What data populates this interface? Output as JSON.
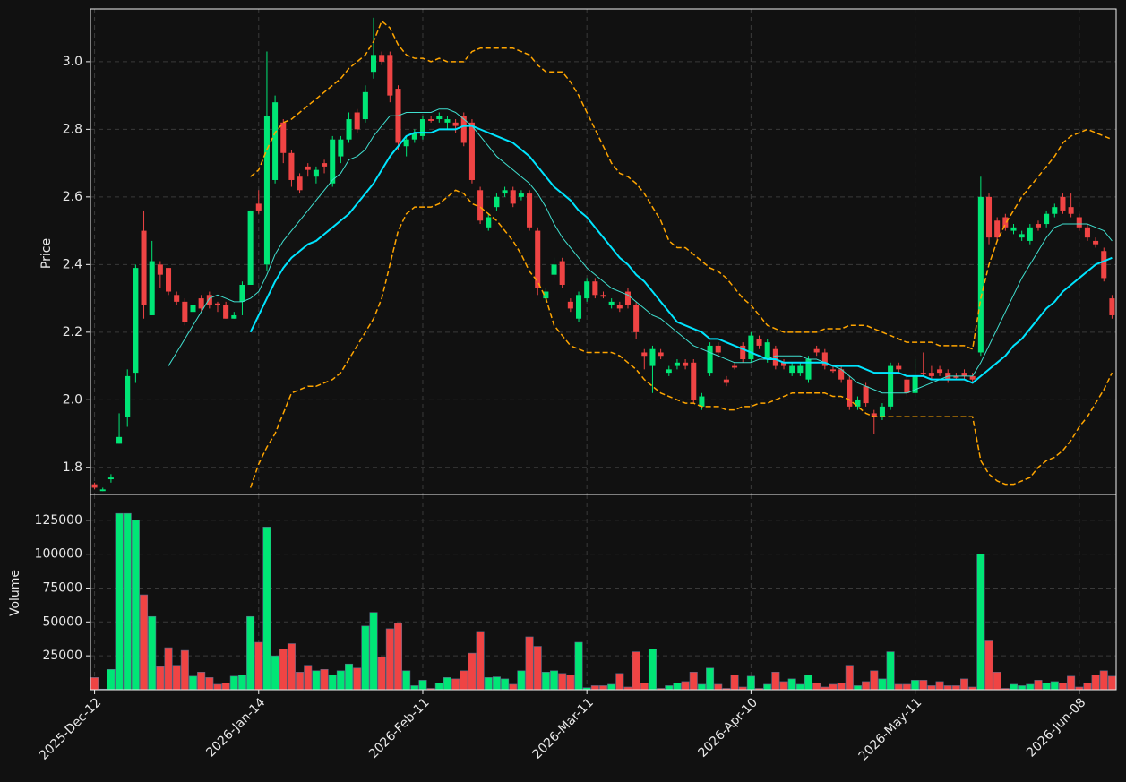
{
  "chart_data": {
    "type": "candlestick",
    "ylabel": "Price",
    "categories": [
      "2025-Dec-12",
      null,
      null,
      null,
      null,
      null,
      null,
      null,
      null,
      null,
      null,
      null,
      null,
      null,
      null,
      null,
      null,
      null,
      null,
      null,
      "2026-Jan-14",
      null,
      null,
      null,
      null,
      null,
      null,
      null,
      null,
      null,
      null,
      null,
      null,
      null,
      null,
      null,
      null,
      null,
      null,
      null,
      "2026-Feb-11",
      null,
      null,
      null,
      null,
      null,
      null,
      null,
      null,
      null,
      null,
      null,
      null,
      null,
      null,
      null,
      null,
      null,
      null,
      null,
      "2026-Mar-11",
      null,
      null,
      null,
      null,
      null,
      null,
      null,
      null,
      null,
      null,
      null,
      null,
      null,
      null,
      null,
      null,
      null,
      null,
      null,
      "2026-Apr-10",
      null,
      null,
      null,
      null,
      null,
      null,
      null,
      null,
      null,
      null,
      null,
      null,
      null,
      null,
      null,
      null,
      null,
      null,
      null,
      "2026-May-11",
      null,
      null,
      null,
      null,
      null,
      null,
      null,
      null,
      null,
      null,
      null,
      null,
      null,
      null,
      null,
      null,
      null,
      null,
      null,
      "2026-Jun-08",
      null,
      null,
      null,
      null
    ],
    "open": [
      1.75,
      1.73,
      1.765,
      1.87,
      1.95,
      2.08,
      2.5,
      2.25,
      2.4,
      2.39,
      2.31,
      2.29,
      2.26,
      2.3,
      2.31,
      2.285,
      2.28,
      2.24,
      2.29,
      2.34,
      2.58,
      2.4,
      2.65,
      2.82,
      2.73,
      2.66,
      2.69,
      2.66,
      2.7,
      2.64,
      2.72,
      2.77,
      2.85,
      2.83,
      2.97,
      3.02,
      3.02,
      2.92,
      2.75,
      2.77,
      2.78,
      2.83,
      2.83,
      2.82,
      2.82,
      2.84,
      2.82,
      2.62,
      2.51,
      2.57,
      2.61,
      2.62,
      2.6,
      2.61,
      2.5,
      2.3,
      2.37,
      2.41,
      2.29,
      2.24,
      2.3,
      2.35,
      2.31,
      2.28,
      2.28,
      2.32,
      2.28,
      2.14,
      2.1,
      2.14,
      2.08,
      2.1,
      2.11,
      2.11,
      1.98,
      2.08,
      2.16,
      2.06,
      2.1,
      2.16,
      2.12,
      2.18,
      2.12,
      2.15,
      2.11,
      2.08,
      2.08,
      2.06,
      2.15,
      2.14,
      2.09,
      2.09,
      2.06,
      1.98,
      2.04,
      1.96,
      1.95,
      1.98,
      2.1,
      2.06,
      2.02,
      2.08,
      2.08,
      2.09,
      2.08,
      2.07,
      2.08,
      2.07,
      2.14,
      2.6,
      2.53,
      2.54,
      2.5,
      2.48,
      2.47,
      2.52,
      2.52,
      2.55,
      2.6,
      2.57,
      2.54,
      2.51,
      2.47,
      2.44,
      2.3
    ],
    "high": [
      1.755,
      1.74,
      1.78,
      1.96,
      2.09,
      2.4,
      2.56,
      2.47,
      2.41,
      2.39,
      2.32,
      2.3,
      2.29,
      2.31,
      2.32,
      2.29,
      2.29,
      2.26,
      2.35,
      2.56,
      2.62,
      3.03,
      2.9,
      2.83,
      2.74,
      2.67,
      2.7,
      2.69,
      2.71,
      2.78,
      2.78,
      2.85,
      2.86,
      2.93,
      3.13,
      3.03,
      3.03,
      2.93,
      2.78,
      2.8,
      2.84,
      2.84,
      2.85,
      2.84,
      2.83,
      2.85,
      2.83,
      2.63,
      2.55,
      2.61,
      2.63,
      2.63,
      2.62,
      2.62,
      2.51,
      2.33,
      2.42,
      2.42,
      2.3,
      2.32,
      2.36,
      2.36,
      2.32,
      2.3,
      2.29,
      2.33,
      2.29,
      2.15,
      2.16,
      2.15,
      2.1,
      2.12,
      2.12,
      2.12,
      2.02,
      2.17,
      2.17,
      2.07,
      2.11,
      2.17,
      2.2,
      2.19,
      2.18,
      2.16,
      2.12,
      2.11,
      2.11,
      2.13,
      2.16,
      2.15,
      2.1,
      2.1,
      2.07,
      2.01,
      2.05,
      1.97,
      1.99,
      2.11,
      2.11,
      2.07,
      2.12,
      2.14,
      2.1,
      2.1,
      2.09,
      2.08,
      2.09,
      2.08,
      2.66,
      2.61,
      2.54,
      2.55,
      2.52,
      2.5,
      2.52,
      2.53,
      2.56,
      2.58,
      2.61,
      2.61,
      2.55,
      2.52,
      2.48,
      2.45,
      2.31
    ],
    "low": [
      1.735,
      1.73,
      1.755,
      1.87,
      1.92,
      2.05,
      2.24,
      2.25,
      2.33,
      2.31,
      2.28,
      2.22,
      2.25,
      2.26,
      2.27,
      2.26,
      2.24,
      2.24,
      2.25,
      2.34,
      2.55,
      2.38,
      2.64,
      2.7,
      2.63,
      2.61,
      2.66,
      2.64,
      2.67,
      2.63,
      2.7,
      2.76,
      2.79,
      2.82,
      2.95,
      2.99,
      2.88,
      2.74,
      2.72,
      2.76,
      2.77,
      2.82,
      2.82,
      2.8,
      2.79,
      2.75,
      2.64,
      2.52,
      2.5,
      2.56,
      2.6,
      2.57,
      2.59,
      2.5,
      2.31,
      2.29,
      2.36,
      2.33,
      2.26,
      2.23,
      2.29,
      2.3,
      2.3,
      2.27,
      2.26,
      2.27,
      2.18,
      2.09,
      2.02,
      2.12,
      2.07,
      2.09,
      2.09,
      1.99,
      1.97,
      2.07,
      2.13,
      2.04,
      2.09,
      2.11,
      2.11,
      2.15,
      2.11,
      2.09,
      2.09,
      2.07,
      2.07,
      2.05,
      2.13,
      2.09,
      2.08,
      2.05,
      1.97,
      1.97,
      1.98,
      1.9,
      1.94,
      1.97,
      2.08,
      2.01,
      2.01,
      2.07,
      2.06,
      2.07,
      2.05,
      2.06,
      2.06,
      2.05,
      2.13,
      2.46,
      2.47,
      2.5,
      2.49,
      2.47,
      2.46,
      2.5,
      2.51,
      2.54,
      2.55,
      2.54,
      2.5,
      2.47,
      2.45,
      2.35,
      2.24
    ],
    "close": [
      1.74,
      1.735,
      1.77,
      1.89,
      2.07,
      2.39,
      2.28,
      2.41,
      2.37,
      2.32,
      2.29,
      2.23,
      2.28,
      2.27,
      2.28,
      2.28,
      2.24,
      2.25,
      2.34,
      2.56,
      2.56,
      2.84,
      2.88,
      2.73,
      2.65,
      2.62,
      2.68,
      2.68,
      2.69,
      2.77,
      2.77,
      2.83,
      2.8,
      2.91,
      3.02,
      3.0,
      2.9,
      2.76,
      2.77,
      2.79,
      2.83,
      2.825,
      2.84,
      2.83,
      2.81,
      2.76,
      2.65,
      2.53,
      2.54,
      2.6,
      2.62,
      2.58,
      2.61,
      2.51,
      2.33,
      2.32,
      2.4,
      2.34,
      2.27,
      2.31,
      2.35,
      2.31,
      2.305,
      2.29,
      2.27,
      2.28,
      2.2,
      2.13,
      2.15,
      2.13,
      2.09,
      2.11,
      2.1,
      2.0,
      2.01,
      2.16,
      2.14,
      2.05,
      2.095,
      2.12,
      2.19,
      2.16,
      2.17,
      2.1,
      2.1,
      2.1,
      2.1,
      2.12,
      2.14,
      2.1,
      2.085,
      2.06,
      1.98,
      2.0,
      1.99,
      1.95,
      1.98,
      2.1,
      2.09,
      2.02,
      2.07,
      2.075,
      2.07,
      2.08,
      2.06,
      2.065,
      2.07,
      2.06,
      2.6,
      2.48,
      2.48,
      2.51,
      2.51,
      2.49,
      2.51,
      2.51,
      2.55,
      2.57,
      2.56,
      2.55,
      2.51,
      2.48,
      2.46,
      2.36,
      2.25
    ],
    "up_color": "#00e676",
    "down_color": "#ef4444",
    "overlays": [
      {
        "color": "#40e0d0",
        "linewidth": 1,
        "linestyle": "solid",
        "values": [
          null,
          null,
          null,
          null,
          null,
          null,
          null,
          null,
          null,
          2.1,
          2.14,
          2.18,
          2.22,
          2.26,
          2.3,
          2.31,
          2.3,
          2.29,
          2.29,
          2.3,
          2.32,
          2.37,
          2.43,
          2.47,
          2.5,
          2.53,
          2.56,
          2.59,
          2.62,
          2.65,
          2.67,
          2.71,
          2.72,
          2.74,
          2.78,
          2.81,
          2.84,
          2.84,
          2.85,
          2.85,
          2.85,
          2.85,
          2.86,
          2.86,
          2.85,
          2.83,
          2.81,
          2.78,
          2.75,
          2.72,
          2.7,
          2.68,
          2.66,
          2.64,
          2.61,
          2.57,
          2.52,
          2.48,
          2.45,
          2.42,
          2.39,
          2.37,
          2.35,
          2.33,
          2.32,
          2.31,
          2.29,
          2.27,
          2.25,
          2.24,
          2.22,
          2.2,
          2.18,
          2.16,
          2.15,
          2.14,
          2.13,
          2.12,
          2.11,
          2.11,
          2.11,
          2.12,
          2.12,
          2.13,
          2.13,
          2.13,
          2.13,
          2.12,
          2.12,
          2.11,
          2.1,
          2.09,
          2.07,
          2.05,
          2.04,
          2.03,
          2.02,
          2.02,
          2.02,
          2.02,
          2.03,
          2.04,
          2.05,
          2.06,
          2.07,
          2.07,
          2.07,
          2.07,
          2.11,
          2.16,
          2.21,
          2.26,
          2.31,
          2.36,
          2.4,
          2.44,
          2.48,
          2.51,
          2.52,
          2.52,
          2.52,
          2.52,
          2.51,
          2.5,
          2.47
        ]
      },
      {
        "color": "#00e5ff",
        "linewidth": 2,
        "linestyle": "solid",
        "values": [
          null,
          null,
          null,
          null,
          null,
          null,
          null,
          null,
          null,
          null,
          null,
          null,
          null,
          null,
          null,
          null,
          null,
          null,
          null,
          2.2,
          2.25,
          2.3,
          2.35,
          2.39,
          2.42,
          2.44,
          2.46,
          2.47,
          2.49,
          2.51,
          2.53,
          2.55,
          2.58,
          2.61,
          2.64,
          2.68,
          2.72,
          2.75,
          2.78,
          2.79,
          2.79,
          2.79,
          2.8,
          2.8,
          2.8,
          2.81,
          2.81,
          2.8,
          2.79,
          2.78,
          2.77,
          2.76,
          2.74,
          2.72,
          2.69,
          2.66,
          2.63,
          2.61,
          2.59,
          2.56,
          2.54,
          2.51,
          2.48,
          2.45,
          2.42,
          2.4,
          2.37,
          2.35,
          2.32,
          2.29,
          2.26,
          2.23,
          2.22,
          2.21,
          2.2,
          2.18,
          2.18,
          2.17,
          2.16,
          2.15,
          2.14,
          2.13,
          2.12,
          2.12,
          2.11,
          2.11,
          2.11,
          2.11,
          2.11,
          2.11,
          2.1,
          2.1,
          2.1,
          2.1,
          2.09,
          2.08,
          2.08,
          2.08,
          2.08,
          2.07,
          2.07,
          2.07,
          2.06,
          2.06,
          2.06,
          2.06,
          2.06,
          2.05,
          2.07,
          2.09,
          2.11,
          2.13,
          2.16,
          2.18,
          2.21,
          2.24,
          2.27,
          2.29,
          2.32,
          2.34,
          2.36,
          2.38,
          2.4,
          2.41,
          2.42
        ]
      },
      {
        "color": "#ffa500",
        "linewidth": 1.5,
        "linestyle": "dashed",
        "values": [
          null,
          null,
          null,
          null,
          null,
          null,
          null,
          null,
          null,
          null,
          null,
          null,
          null,
          null,
          null,
          null,
          null,
          null,
          null,
          2.66,
          2.68,
          2.74,
          2.79,
          2.82,
          2.83,
          2.85,
          2.87,
          2.89,
          2.91,
          2.93,
          2.95,
          2.98,
          3.0,
          3.02,
          3.06,
          3.12,
          3.1,
          3.05,
          3.02,
          3.01,
          3.01,
          3.0,
          3.01,
          3.0,
          3.0,
          3.0,
          3.03,
          3.04,
          3.04,
          3.04,
          3.04,
          3.04,
          3.03,
          3.02,
          2.99,
          2.97,
          2.97,
          2.97,
          2.94,
          2.9,
          2.85,
          2.8,
          2.75,
          2.7,
          2.67,
          2.66,
          2.64,
          2.61,
          2.57,
          2.53,
          2.47,
          2.45,
          2.45,
          2.43,
          2.41,
          2.39,
          2.38,
          2.36,
          2.33,
          2.3,
          2.28,
          2.25,
          2.22,
          2.21,
          2.2,
          2.2,
          2.2,
          2.2,
          2.2,
          2.21,
          2.21,
          2.21,
          2.22,
          2.22,
          2.22,
          2.21,
          2.2,
          2.19,
          2.18,
          2.17,
          2.17,
          2.17,
          2.17,
          2.16,
          2.16,
          2.16,
          2.16,
          2.15,
          2.3,
          2.4,
          2.47,
          2.52,
          2.56,
          2.6,
          2.63,
          2.66,
          2.69,
          2.72,
          2.76,
          2.78,
          2.79,
          2.8,
          2.79,
          2.78,
          2.77
        ]
      },
      {
        "color": "#ffa500",
        "linewidth": 1.5,
        "linestyle": "dashed",
        "values": [
          null,
          null,
          null,
          null,
          null,
          null,
          null,
          null,
          null,
          null,
          null,
          null,
          null,
          null,
          null,
          null,
          null,
          null,
          null,
          1.74,
          1.81,
          1.86,
          1.9,
          1.96,
          2.02,
          2.03,
          2.04,
          2.04,
          2.05,
          2.06,
          2.08,
          2.12,
          2.16,
          2.2,
          2.24,
          2.3,
          2.4,
          2.5,
          2.55,
          2.57,
          2.57,
          2.57,
          2.58,
          2.6,
          2.62,
          2.61,
          2.58,
          2.57,
          2.55,
          2.53,
          2.5,
          2.47,
          2.43,
          2.38,
          2.35,
          2.3,
          2.22,
          2.19,
          2.16,
          2.15,
          2.14,
          2.14,
          2.14,
          2.14,
          2.13,
          2.11,
          2.09,
          2.06,
          2.04,
          2.02,
          2.01,
          2.0,
          1.99,
          1.99,
          1.98,
          1.98,
          1.98,
          1.97,
          1.97,
          1.98,
          1.98,
          1.99,
          1.99,
          2.0,
          2.01,
          2.02,
          2.02,
          2.02,
          2.02,
          2.02,
          2.01,
          2.01,
          2.0,
          1.98,
          1.96,
          1.95,
          1.95,
          1.95,
          1.95,
          1.95,
          1.95,
          1.95,
          1.95,
          1.95,
          1.95,
          1.95,
          1.95,
          1.95,
          1.82,
          1.78,
          1.76,
          1.75,
          1.75,
          1.76,
          1.77,
          1.8,
          1.82,
          1.83,
          1.85,
          1.88,
          1.92,
          1.95,
          1.99,
          2.03,
          2.08
        ]
      }
    ],
    "ylim": [
      1.72,
      3.156
    ],
    "yticks": [
      1.8,
      {
        "value": 2,
        "label": "2.0"
      },
      2.2,
      2.4,
      2.6,
      2.8,
      {
        "value": 3,
        "label": "3.0"
      }
    ],
    "grid": true,
    "volume": {
      "ylabel": "Volume",
      "values": [
        9000,
        500,
        15000,
        130000,
        130000,
        125000,
        70000,
        54000,
        17000,
        31000,
        18000,
        29000,
        10000,
        13000,
        9000,
        4000,
        5000,
        10000,
        11000,
        54000,
        35000,
        120000,
        25000,
        30000,
        34000,
        13000,
        18000,
        14000,
        15000,
        11000,
        14000,
        19000,
        16000,
        47000,
        57000,
        24000,
        45000,
        49000,
        14000,
        3000,
        7000,
        1000,
        5000,
        9000,
        8000,
        14000,
        27000,
        43000,
        9000,
        9500,
        8000,
        4000,
        14000,
        39000,
        32000,
        13000,
        14000,
        12000,
        11000,
        35000,
        1500,
        3000,
        3000,
        4000,
        12000,
        2000,
        28000,
        5000,
        30000,
        1000,
        3000,
        5000,
        6000,
        13000,
        4000,
        16000,
        4000,
        1000,
        11000,
        2000,
        10000,
        1000,
        4000,
        13000,
        6000,
        8000,
        4000,
        11000,
        5000,
        2000,
        4000,
        5000,
        18000,
        3000,
        6000,
        14000,
        8000,
        28000,
        4000,
        4000,
        7000,
        7000,
        3000,
        6000,
        3000,
        3000,
        8000,
        2000,
        100000,
        36000,
        13000,
        1000,
        4000,
        3000,
        4000,
        7000,
        5000,
        6000,
        5000,
        10000,
        2000,
        5000,
        11000,
        14000,
        10000
      ],
      "ylim": [
        0,
        144000
      ],
      "yticks": [
        25000,
        50000,
        75000,
        100000,
        125000
      ]
    }
  }
}
